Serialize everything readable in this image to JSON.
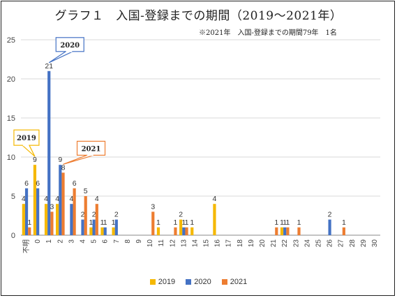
{
  "chart_data": {
    "type": "bar",
    "title": "グラフ１　入国-登録までの期間（2019～2021年）",
    "subtitle": "※2021年　入国-登録までの期間79年　1名",
    "categories": [
      "不明",
      "0",
      "1",
      "2",
      "3",
      "4",
      "5",
      "6",
      "7",
      "8",
      "9",
      "10",
      "11",
      "12",
      "13",
      "14",
      "15",
      "16",
      "17",
      "18",
      "19",
      "20",
      "21",
      "22",
      "23",
      "24",
      "25",
      "26",
      "27",
      "28",
      "29",
      "30"
    ],
    "ylim": [
      0,
      25
    ],
    "yticks": [
      0,
      5,
      10,
      15,
      20,
      25
    ],
    "grid": true,
    "legend": "bottom",
    "series": [
      {
        "name": "2019",
        "color": "#F5B800",
        "values": [
          4,
          9,
          4,
          4,
          0,
          0,
          1,
          1,
          1,
          0,
          0,
          0,
          1,
          0,
          2,
          1,
          0,
          4,
          0,
          0,
          0,
          0,
          0,
          1,
          0,
          0,
          0,
          0,
          0,
          0,
          0,
          0
        ]
      },
      {
        "name": "2020",
        "color": "#4472C4",
        "values": [
          6,
          6,
          21,
          9,
          4,
          2,
          2,
          1,
          2,
          0,
          0,
          0,
          0,
          0,
          1,
          0,
          0,
          0,
          0,
          0,
          0,
          0,
          0,
          1,
          0,
          0,
          0,
          2,
          0,
          0,
          0,
          0
        ]
      },
      {
        "name": "2021",
        "color": "#ED7D31",
        "values": [
          1,
          0,
          3,
          8,
          6,
          5,
          4,
          0,
          0,
          0,
          0,
          3,
          0,
          1,
          1,
          0,
          0,
          0,
          0,
          0,
          0,
          0,
          1,
          1,
          1,
          0,
          0,
          0,
          1,
          0,
          0,
          0
        ]
      }
    ],
    "annotations": [
      {
        "text": "2019",
        "color": "#F5B800",
        "series": "2019",
        "category": "0"
      },
      {
        "text": "2020",
        "color": "#4472C4",
        "series": "2020",
        "category": "1"
      },
      {
        "text": "2021",
        "color": "#ED7D31",
        "series": "2021",
        "category": "2"
      }
    ]
  }
}
